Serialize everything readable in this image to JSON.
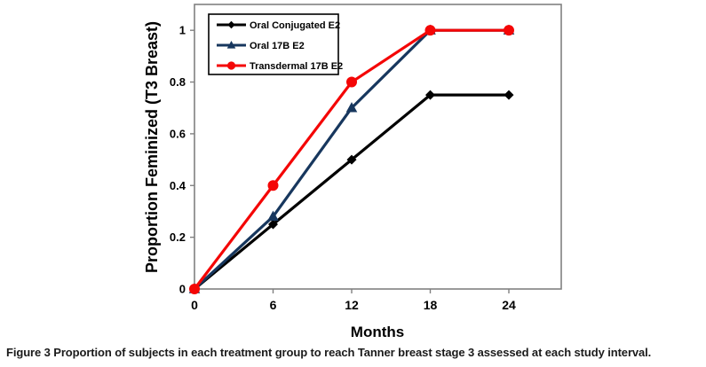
{
  "figure": {
    "label": "Figure 3",
    "caption": "Proportion of subjects in each treatment group to reach Tanner breast stage 3 assessed at each study interval."
  },
  "chart_data": {
    "type": "line",
    "title": "",
    "xlabel": "Months",
    "ylabel": "Proportion Feminized (T3 Breast)",
    "x": [
      0,
      6,
      12,
      18,
      24
    ],
    "series": [
      {
        "name": "Oral Conjugated E2",
        "color": "#000000",
        "marker": "diamond",
        "values": [
          0,
          0.25,
          0.5,
          0.75,
          0.75
        ]
      },
      {
        "name": "Oral 17B E2",
        "color": "#17375e",
        "marker": "triangle",
        "values": [
          0,
          0.28,
          0.7,
          1,
          1
        ]
      },
      {
        "name": "Transdermal 17B E2",
        "color": "#f40606",
        "marker": "circle",
        "values": [
          0,
          0.4,
          0.8,
          1,
          1
        ]
      }
    ],
    "xticks": [
      0,
      6,
      12,
      18,
      24
    ],
    "yticks": [
      0,
      0.2,
      0.4,
      0.6,
      0.8,
      1
    ],
    "xlim": [
      0,
      28
    ],
    "ylim": [
      0,
      1.1
    ],
    "grid": false,
    "legend_position": "top-left-inside",
    "axis_color": "#808080",
    "legend_border_color": "#000000"
  }
}
